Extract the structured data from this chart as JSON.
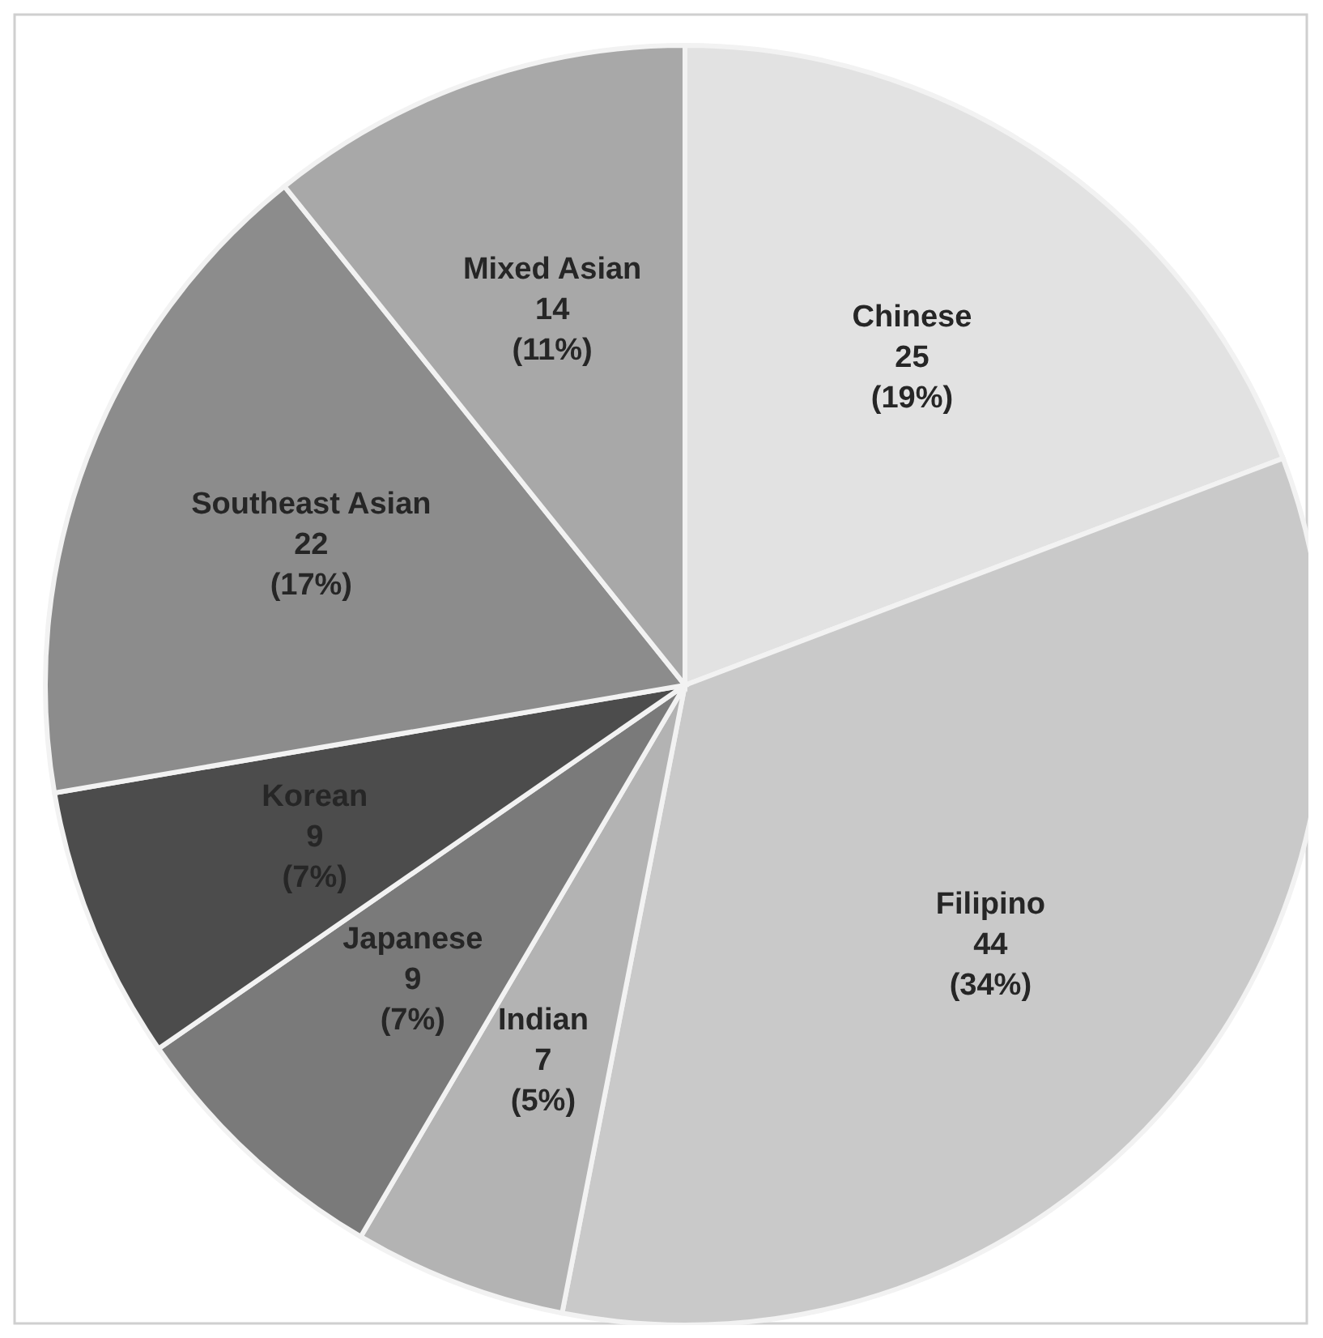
{
  "chart_data": {
    "type": "pie",
    "categories": [
      "Chinese",
      "Filipino",
      "Indian",
      "Japanese",
      "Korean",
      "Southeast Asian",
      "Mixed Asian"
    ],
    "values": [
      25,
      44,
      7,
      9,
      9,
      22,
      14
    ],
    "colors": [
      "#e2e2e2",
      "#c9c9c9",
      "#b3b3b3",
      "#7a7a7a",
      "#4c4c4c",
      "#8c8c8c",
      "#a8a8a8"
    ],
    "value_labels": [
      "25\n(19%)",
      "44\n(34%)",
      "7\n(5%)",
      "9\n(7%)",
      "9\n(7%)",
      "22\n(17%)",
      "14\n(11%)"
    ]
  }
}
